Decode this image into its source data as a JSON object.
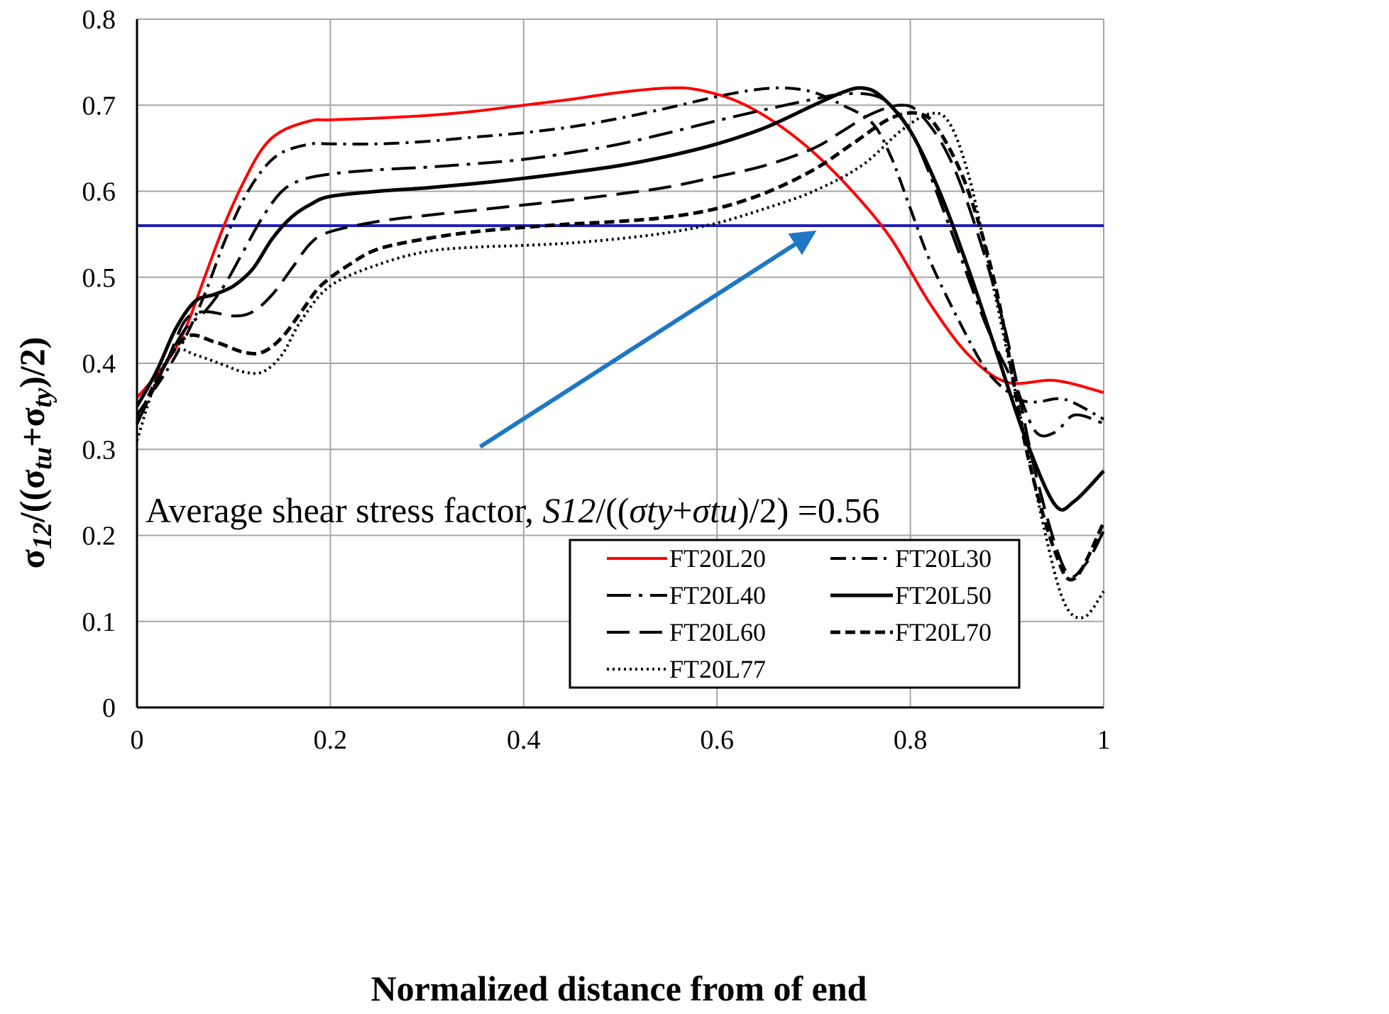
{
  "chart_data": {
    "type": "line",
    "xlabel": "Normalized distance from of end",
    "ylabel_parts": {
      "sigma": "σ",
      "sub12": "12",
      "mid": "/((σ",
      "subtu": "tu",
      "plus": "+σ",
      "subty": "ty",
      "tail": ")/2)"
    },
    "xlim": [
      0,
      1
    ],
    "ylim": [
      0,
      0.8
    ],
    "x_ticks": [
      {
        "value": 0,
        "label": "0"
      },
      {
        "value": 0.2,
        "label": "0.2"
      },
      {
        "value": 0.4,
        "label": "0.4"
      },
      {
        "value": 0.6,
        "label": "0.6"
      },
      {
        "value": 0.8,
        "label": "0.8"
      },
      {
        "value": 1,
        "label": "1"
      }
    ],
    "y_ticks": [
      {
        "value": 0,
        "label": "0"
      },
      {
        "value": 0.1,
        "label": "0.1"
      },
      {
        "value": 0.2,
        "label": "0.2"
      },
      {
        "value": 0.3,
        "label": "0.3"
      },
      {
        "value": 0.4,
        "label": "0.4"
      },
      {
        "value": 0.5,
        "label": "0.5"
      },
      {
        "value": 0.6,
        "label": "0.6"
      },
      {
        "value": 0.7,
        "label": "0.7"
      },
      {
        "value": 0.8,
        "label": "0.8"
      }
    ],
    "grid": true,
    "reference_line": {
      "y": 0.56,
      "color": "#1f1fb4"
    },
    "annotation": {
      "prefix": "Average shear stress factor, ",
      "s12": "S12",
      "mid1": "/((",
      "sty": "σty",
      "plus": "+",
      "stu": "σtu",
      "suffix": ")/2) =0.56",
      "arrow_color": "#1f77c4",
      "arrow_from": {
        "x": 0.355,
        "y": 0.303
      },
      "arrow_to": {
        "x": 0.69,
        "y": 0.545
      }
    },
    "legend_position": "bottom-right",
    "series": [
      {
        "name": "FT20L20",
        "color": "#ff0000",
        "dash": "",
        "width": 4,
        "x": [
          0,
          0.03,
          0.05,
          0.07,
          0.09,
          0.11,
          0.13,
          0.15,
          0.18,
          0.2,
          0.25,
          0.3,
          0.35,
          0.4,
          0.45,
          0.5,
          0.55,
          0.58,
          0.62,
          0.66,
          0.7,
          0.74,
          0.78,
          0.82,
          0.86,
          0.9,
          0.95,
          1
        ],
        "y": [
          0.36,
          0.4,
          0.44,
          0.5,
          0.56,
          0.61,
          0.65,
          0.67,
          0.682,
          0.683,
          0.685,
          0.688,
          0.693,
          0.7,
          0.707,
          0.715,
          0.72,
          0.718,
          0.705,
          0.68,
          0.645,
          0.6,
          0.545,
          0.47,
          0.41,
          0.378,
          0.38,
          0.366
        ]
      },
      {
        "name": "FT20L30",
        "color": "#000000",
        "dash": "22,9,4,9",
        "width": 4,
        "x": [
          0,
          0.03,
          0.05,
          0.07,
          0.09,
          0.11,
          0.13,
          0.15,
          0.18,
          0.2,
          0.25,
          0.3,
          0.35,
          0.4,
          0.45,
          0.5,
          0.55,
          0.6,
          0.64,
          0.67,
          0.7,
          0.73,
          0.76,
          0.78,
          0.8,
          0.82,
          0.85,
          0.88,
          0.91,
          0.93,
          0.96,
          1
        ],
        "y": [
          0.34,
          0.39,
          0.43,
          0.48,
          0.54,
          0.59,
          0.625,
          0.645,
          0.655,
          0.655,
          0.655,
          0.658,
          0.663,
          0.668,
          0.675,
          0.685,
          0.697,
          0.71,
          0.718,
          0.72,
          0.715,
          0.7,
          0.68,
          0.64,
          0.58,
          0.52,
          0.45,
          0.39,
          0.36,
          0.355,
          0.358,
          0.335
        ]
      },
      {
        "name": "FT20L40",
        "color": "#000000",
        "dash": "34,11,5,11",
        "width": 4,
        "x": [
          0,
          0.03,
          0.05,
          0.07,
          0.09,
          0.11,
          0.13,
          0.15,
          0.17,
          0.2,
          0.25,
          0.3,
          0.35,
          0.4,
          0.45,
          0.5,
          0.55,
          0.6,
          0.65,
          0.7,
          0.73,
          0.76,
          0.78,
          0.8,
          0.82,
          0.85,
          0.88,
          0.91,
          0.93,
          0.95,
          0.97,
          1
        ],
        "y": [
          0.33,
          0.4,
          0.44,
          0.46,
          0.49,
          0.53,
          0.57,
          0.6,
          0.613,
          0.62,
          0.625,
          0.628,
          0.632,
          0.637,
          0.645,
          0.655,
          0.668,
          0.682,
          0.695,
          0.707,
          0.713,
          0.712,
          0.7,
          0.67,
          0.62,
          0.53,
          0.44,
          0.37,
          0.32,
          0.32,
          0.34,
          0.33
        ]
      },
      {
        "name": "FT20L50",
        "color": "#000000",
        "dash": "",
        "width": 5,
        "x": [
          0,
          0.02,
          0.04,
          0.06,
          0.08,
          0.1,
          0.12,
          0.14,
          0.16,
          0.18,
          0.2,
          0.25,
          0.3,
          0.35,
          0.4,
          0.45,
          0.5,
          0.55,
          0.6,
          0.65,
          0.7,
          0.73,
          0.75,
          0.77,
          0.8,
          0.83,
          0.86,
          0.89,
          0.92,
          0.95,
          0.97,
          1
        ],
        "y": [
          0.35,
          0.39,
          0.44,
          0.472,
          0.48,
          0.49,
          0.51,
          0.545,
          0.57,
          0.585,
          0.594,
          0.6,
          0.604,
          0.609,
          0.615,
          0.622,
          0.63,
          0.641,
          0.655,
          0.674,
          0.7,
          0.715,
          0.72,
          0.71,
          0.67,
          0.6,
          0.51,
          0.41,
          0.31,
          0.235,
          0.24,
          0.275
        ]
      },
      {
        "name": "FT20L60",
        "color": "#000000",
        "dash": "32,14",
        "width": 4,
        "x": [
          0,
          0.03,
          0.05,
          0.07,
          0.1,
          0.12,
          0.14,
          0.16,
          0.18,
          0.2,
          0.25,
          0.3,
          0.35,
          0.4,
          0.45,
          0.5,
          0.55,
          0.6,
          0.65,
          0.7,
          0.73,
          0.76,
          0.79,
          0.81,
          0.84,
          0.87,
          0.9,
          0.93,
          0.96,
          0.98,
          1
        ],
        "y": [
          0.33,
          0.4,
          0.45,
          0.46,
          0.455,
          0.46,
          0.48,
          0.51,
          0.54,
          0.553,
          0.565,
          0.572,
          0.578,
          0.584,
          0.59,
          0.597,
          0.605,
          0.617,
          0.63,
          0.65,
          0.67,
          0.69,
          0.7,
          0.69,
          0.64,
          0.55,
          0.43,
          0.27,
          0.16,
          0.165,
          0.205
        ]
      },
      {
        "name": "FT20L70",
        "color": "#000000",
        "dash": "14,7",
        "width": 5,
        "x": [
          0,
          0.02,
          0.05,
          0.08,
          0.11,
          0.13,
          0.15,
          0.17,
          0.19,
          0.22,
          0.25,
          0.3,
          0.35,
          0.4,
          0.45,
          0.5,
          0.55,
          0.6,
          0.65,
          0.7,
          0.74,
          0.78,
          0.81,
          0.83,
          0.86,
          0.89,
          0.92,
          0.95,
          0.97,
          1
        ],
        "y": [
          0.33,
          0.38,
          0.43,
          0.425,
          0.413,
          0.413,
          0.43,
          0.46,
          0.49,
          0.515,
          0.533,
          0.545,
          0.553,
          0.558,
          0.562,
          0.565,
          0.57,
          0.58,
          0.598,
          0.625,
          0.655,
          0.685,
          0.69,
          0.67,
          0.6,
          0.48,
          0.3,
          0.18,
          0.15,
          0.215
        ]
      },
      {
        "name": "FT20L77",
        "color": "#000000",
        "dash": "3,5",
        "width": 4,
        "x": [
          0,
          0.02,
          0.04,
          0.06,
          0.09,
          0.11,
          0.13,
          0.15,
          0.17,
          0.2,
          0.25,
          0.3,
          0.35,
          0.4,
          0.45,
          0.5,
          0.55,
          0.6,
          0.65,
          0.7,
          0.75,
          0.79,
          0.82,
          0.84,
          0.86,
          0.88,
          0.91,
          0.94,
          0.96,
          0.98,
          1
        ],
        "y": [
          0.31,
          0.38,
          0.415,
          0.41,
          0.398,
          0.39,
          0.39,
          0.41,
          0.45,
          0.49,
          0.515,
          0.53,
          0.535,
          0.537,
          0.54,
          0.545,
          0.552,
          0.563,
          0.58,
          0.6,
          0.63,
          0.67,
          0.69,
          0.68,
          0.62,
          0.52,
          0.36,
          0.2,
          0.12,
          0.105,
          0.135
        ]
      }
    ]
  }
}
